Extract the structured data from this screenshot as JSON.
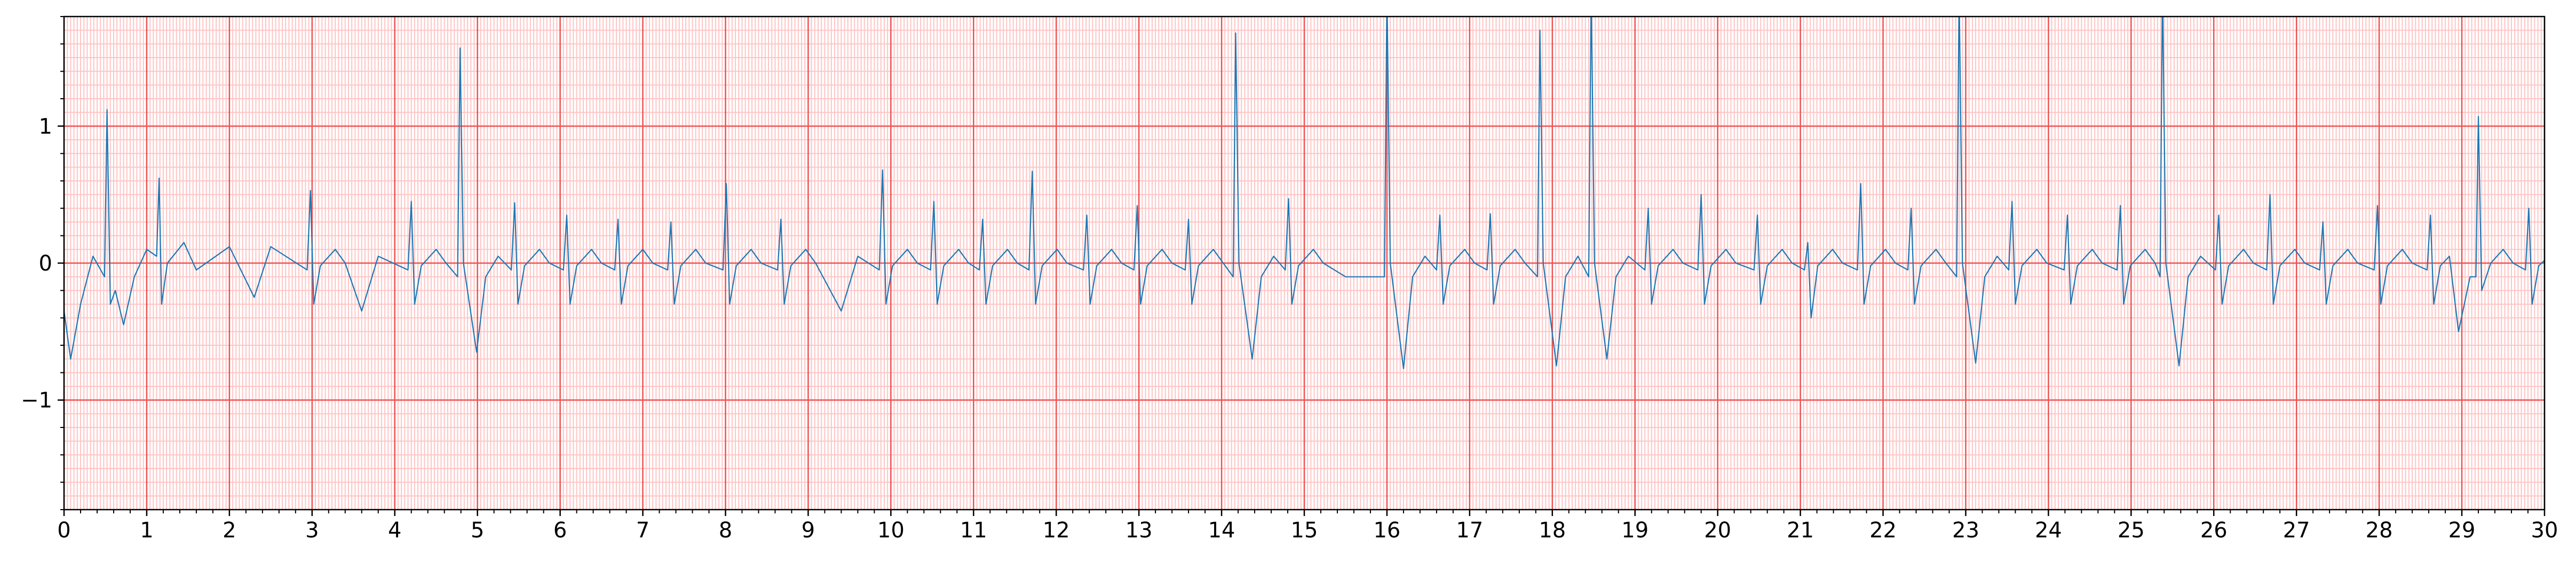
{
  "chart_data": {
    "type": "line",
    "x": [
      0,
      0.08,
      0.2,
      0.35,
      0.49,
      0.52,
      0.56,
      0.62,
      0.72,
      0.85,
      1.0,
      1.12,
      1.15,
      1.18,
      1.25,
      1.45,
      1.6,
      2.0,
      2.3,
      2.5,
      2.94,
      2.98,
      3.02,
      3.1,
      3.28,
      3.4,
      3.6,
      3.8,
      4.16,
      4.2,
      4.24,
      4.32,
      4.5,
      4.62,
      4.76,
      4.79,
      4.83,
      4.99,
      5.1,
      5.25,
      5.41,
      5.45,
      5.49,
      5.57,
      5.75,
      5.87,
      6.04,
      6.08,
      6.12,
      6.2,
      6.38,
      6.5,
      6.66,
      6.7,
      6.74,
      6.82,
      7.0,
      7.12,
      7.3,
      7.34,
      7.38,
      7.46,
      7.64,
      7.76,
      7.97,
      8.01,
      8.05,
      8.13,
      8.31,
      8.43,
      8.63,
      8.67,
      8.71,
      8.79,
      8.97,
      9.09,
      9.4,
      9.6,
      9.86,
      9.9,
      9.94,
      10.02,
      10.2,
      10.32,
      10.48,
      10.52,
      10.56,
      10.64,
      10.82,
      10.94,
      11.07,
      11.11,
      11.15,
      11.23,
      11.41,
      11.53,
      11.67,
      11.71,
      11.75,
      11.83,
      12.01,
      12.13,
      12.33,
      12.37,
      12.41,
      12.49,
      12.67,
      12.79,
      12.94,
      12.98,
      13.02,
      13.1,
      13.28,
      13.4,
      13.56,
      13.6,
      13.64,
      13.72,
      13.9,
      14.02,
      14.14,
      14.17,
      14.21,
      14.37,
      14.48,
      14.63,
      14.77,
      14.81,
      14.85,
      14.93,
      15.11,
      15.23,
      15.5,
      15.97,
      16.0,
      16.04,
      16.2,
      16.31,
      16.46,
      16.6,
      16.64,
      16.68,
      16.76,
      16.94,
      17.06,
      17.21,
      17.25,
      17.29,
      17.37,
      17.55,
      17.67,
      17.82,
      17.85,
      17.89,
      18.05,
      18.16,
      18.31,
      18.44,
      18.47,
      18.51,
      18.66,
      18.77,
      18.92,
      19.12,
      19.16,
      19.2,
      19.28,
      19.46,
      19.58,
      19.76,
      19.8,
      19.84,
      19.92,
      20.1,
      20.22,
      20.44,
      20.48,
      20.52,
      20.6,
      20.78,
      20.9,
      21.05,
      21.09,
      21.13,
      21.21,
      21.39,
      21.51,
      21.69,
      21.73,
      21.77,
      21.85,
      22.03,
      22.15,
      22.3,
      22.34,
      22.38,
      22.46,
      22.64,
      22.76,
      22.89,
      22.92,
      22.96,
      23.12,
      23.23,
      23.38,
      23.52,
      23.56,
      23.6,
      23.68,
      23.86,
      23.98,
      24.19,
      24.23,
      24.27,
      24.35,
      24.53,
      24.65,
      24.83,
      24.87,
      24.91,
      24.99,
      25.17,
      25.29,
      25.35,
      25.38,
      25.42,
      25.58,
      25.69,
      25.84,
      26.02,
      26.06,
      26.1,
      26.18,
      26.36,
      26.48,
      26.64,
      26.68,
      26.72,
      26.8,
      26.98,
      27.1,
      27.28,
      27.32,
      27.36,
      27.44,
      27.62,
      27.74,
      27.94,
      27.98,
      28.02,
      28.1,
      28.28,
      28.4,
      28.58,
      28.62,
      28.66,
      28.74,
      28.85,
      28.96,
      29.1,
      29.17,
      29.2,
      29.24,
      29.35,
      29.5,
      29.62,
      29.77,
      29.81,
      29.85,
      29.93,
      30
    ],
    "values": [
      -0.35,
      -0.7,
      -0.3,
      0.05,
      -0.1,
      1.12,
      -0.3,
      -0.2,
      -0.45,
      -0.1,
      0.1,
      0.05,
      0.62,
      -0.3,
      0,
      0.15,
      -0.05,
      0.12,
      -0.25,
      0.12,
      -0.05,
      0.53,
      -0.3,
      -0.02,
      0.1,
      0,
      -0.35,
      0.05,
      -0.05,
      0.45,
      -0.3,
      -0.02,
      0.1,
      0,
      -0.1,
      1.57,
      0,
      -0.65,
      -0.1,
      0.05,
      -0.05,
      0.44,
      -0.3,
      -0.02,
      0.1,
      0,
      -0.05,
      0.35,
      -0.3,
      -0.02,
      0.1,
      0,
      -0.05,
      0.32,
      -0.3,
      -0.02,
      0.1,
      0,
      -0.05,
      0.3,
      -0.3,
      -0.02,
      0.1,
      0,
      -0.05,
      0.58,
      -0.3,
      -0.02,
      0.1,
      0,
      -0.05,
      0.32,
      -0.3,
      -0.02,
      0.1,
      0,
      -0.35,
      0.05,
      -0.05,
      0.68,
      -0.3,
      -0.02,
      0.1,
      0,
      -0.05,
      0.45,
      -0.3,
      -0.02,
      0.1,
      0,
      -0.05,
      0.32,
      -0.3,
      -0.02,
      0.1,
      0,
      -0.05,
      0.67,
      -0.3,
      -0.02,
      0.1,
      0,
      -0.05,
      0.35,
      -0.3,
      -0.02,
      0.1,
      0,
      -0.05,
      0.42,
      -0.3,
      -0.02,
      0.1,
      0,
      -0.05,
      0.32,
      -0.3,
      -0.02,
      0.1,
      0,
      -0.1,
      1.68,
      0,
      -0.7,
      -0.1,
      0.05,
      -0.05,
      0.47,
      -0.3,
      -0.02,
      0.1,
      0,
      -0.1,
      -0.1,
      2.0,
      0,
      -0.77,
      -0.1,
      0.05,
      -0.05,
      0.35,
      -0.3,
      -0.02,
      0.1,
      0,
      -0.05,
      0.36,
      -0.3,
      -0.02,
      0.1,
      0,
      -0.1,
      1.7,
      0,
      -0.75,
      -0.1,
      0.05,
      -0.1,
      2.0,
      0,
      -0.7,
      -0.1,
      0.05,
      -0.05,
      0.4,
      -0.3,
      -0.02,
      0.1,
      0,
      -0.05,
      0.5,
      -0.3,
      -0.02,
      0.1,
      0,
      -0.05,
      0.35,
      -0.3,
      -0.02,
      0.1,
      0,
      -0.05,
      0.15,
      -0.4,
      -0.02,
      0.1,
      0,
      -0.05,
      0.58,
      -0.3,
      -0.02,
      0.1,
      0,
      -0.05,
      0.4,
      -0.3,
      -0.02,
      0.1,
      0,
      -0.1,
      2.0,
      0,
      -0.73,
      -0.1,
      0.05,
      -0.05,
      0.45,
      -0.3,
      -0.02,
      0.1,
      0,
      -0.05,
      0.35,
      -0.3,
      -0.02,
      0.1,
      0,
      -0.05,
      0.42,
      -0.3,
      -0.02,
      0.1,
      0,
      -0.1,
      2.0,
      0,
      -0.75,
      -0.1,
      0.05,
      -0.05,
      0.35,
      -0.3,
      -0.02,
      0.1,
      0,
      -0.05,
      0.5,
      -0.3,
      -0.02,
      0.1,
      0,
      -0.05,
      0.3,
      -0.3,
      -0.02,
      0.1,
      0,
      -0.05,
      0.42,
      -0.3,
      -0.02,
      0.1,
      0,
      -0.05,
      0.35,
      -0.3,
      -0.02,
      0.05,
      -0.5,
      -0.1,
      -0.1,
      1.07,
      -0.2,
      0,
      0.1,
      0,
      -0.05,
      0.4,
      -0.3,
      -0.02,
      0.02
    ],
    "color": "#1f77b4",
    "xlim": [
      0,
      30
    ],
    "xticks": [
      0,
      1,
      2,
      3,
      4,
      5,
      6,
      7,
      8,
      9,
      10,
      11,
      12,
      13,
      14,
      15,
      16,
      17,
      18,
      19,
      20,
      21,
      22,
      23,
      24,
      25,
      26,
      27,
      28,
      29,
      30
    ],
    "ylim": [
      -1.8,
      1.8
    ],
    "yticks": [
      {
        "value": -1,
        "label": "−1"
      },
      0,
      1
    ],
    "grid": true,
    "grid_color": "#f05050",
    "minor_grid_color": "#ffc4c4",
    "minor_grid_step": [
      0.04,
      0.1
    ],
    "minor_tick_step": [
      0.2,
      0.2
    ]
  }
}
